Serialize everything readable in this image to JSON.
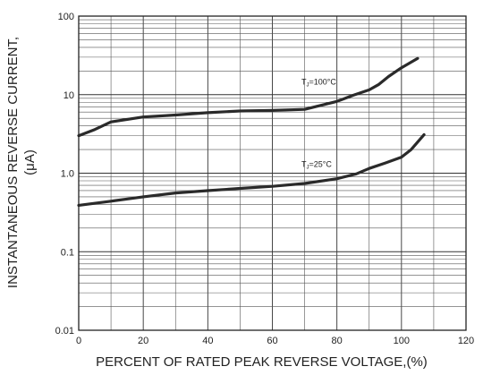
{
  "chart_data": {
    "type": "line",
    "xlabel": "PERCENT OF RATED PEAK REVERSE VOLTAGE,(%)",
    "ylabel_lines": [
      "INSTANTANEOUS REVERSE CURRENT,",
      "(μA)"
    ],
    "xlim": [
      0,
      120
    ],
    "ylim": [
      0.01,
      100
    ],
    "yscale": "log",
    "grid": true,
    "xticks": [
      0,
      20,
      40,
      60,
      80,
      100,
      120
    ],
    "xtick_labels": [
      "0",
      "20",
      "40",
      "60",
      "80",
      "100",
      "120"
    ],
    "yticks": [
      0.01,
      0.1,
      1,
      10,
      100
    ],
    "ytick_labels": [
      "0.01",
      "0.1",
      "1.0",
      "10",
      "100"
    ],
    "series": [
      {
        "name": "TJ=100°C",
        "label_main": "T",
        "label_sub": "J",
        "label_rest": "=100°C",
        "label_at": [
          69,
          13.5
        ],
        "x": [
          0,
          5,
          10,
          20,
          30,
          40,
          50,
          60,
          70,
          80,
          85,
          90,
          93,
          96,
          100,
          105
        ],
        "y": [
          3.0,
          3.6,
          4.5,
          5.2,
          5.5,
          5.9,
          6.2,
          6.3,
          6.5,
          8.2,
          9.8,
          11.5,
          13.5,
          17,
          22,
          29
        ]
      },
      {
        "name": "TJ=25°C",
        "label_main": "T",
        "label_sub": "J",
        "label_rest": "=25°C",
        "label_at": [
          69,
          1.2
        ],
        "x": [
          0,
          10,
          20,
          30,
          40,
          50,
          60,
          70,
          80,
          86,
          90,
          95,
          100,
          103,
          107
        ],
        "y": [
          0.39,
          0.44,
          0.5,
          0.56,
          0.6,
          0.64,
          0.68,
          0.74,
          0.85,
          0.98,
          1.15,
          1.35,
          1.6,
          2.0,
          3.1
        ]
      }
    ]
  }
}
